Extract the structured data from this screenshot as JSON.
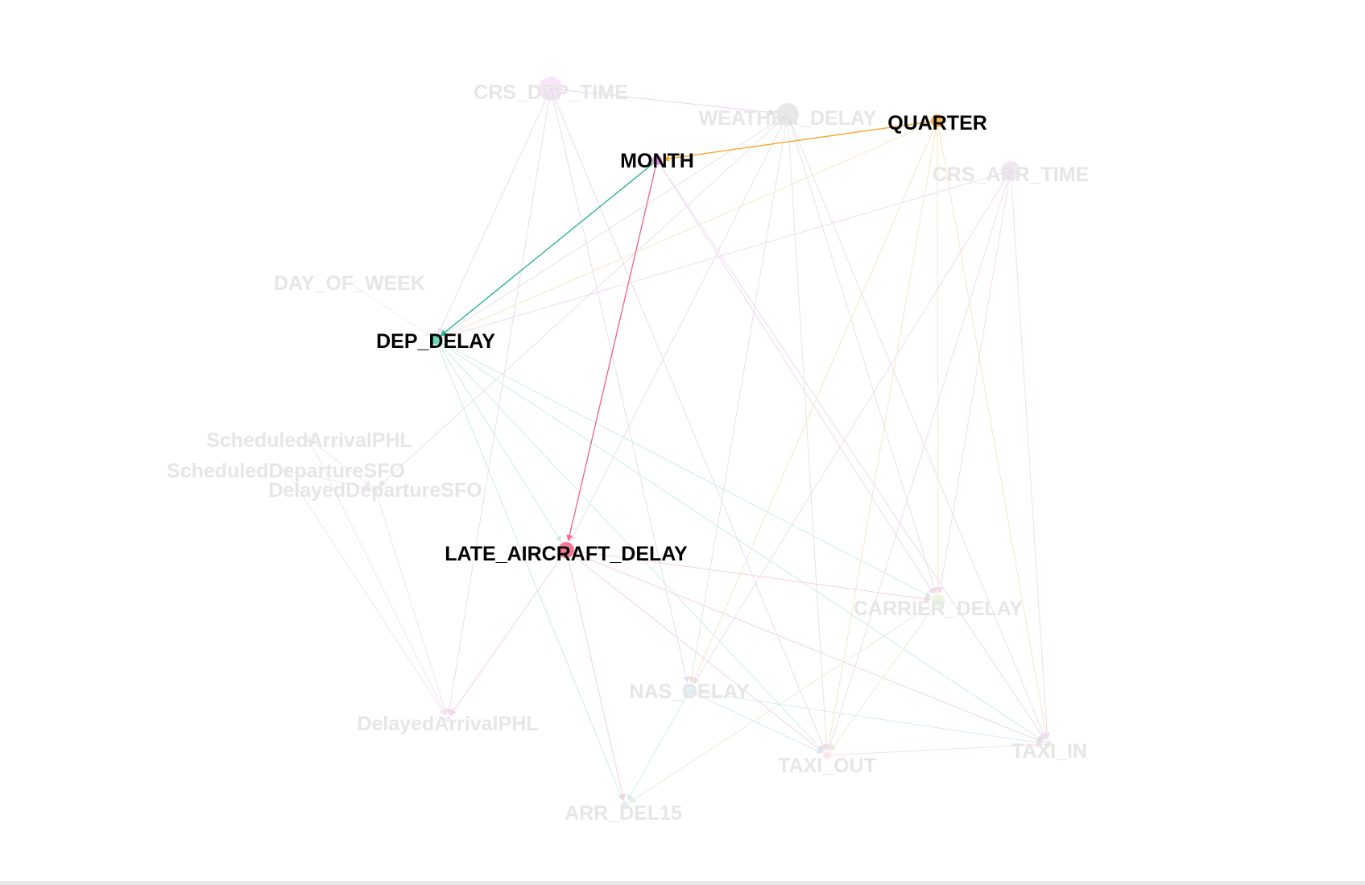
{
  "graph": {
    "highlight_color": "#000000",
    "dim_color": "#e6e6e6",
    "nodes": [
      {
        "id": "CRS_DEP_TIME",
        "label": "CRS_DEP_TIME",
        "color": "#f3c6f0",
        "highlighted": false
      },
      {
        "id": "WEATHER_DELAY",
        "label": "WEATHER_DELAY",
        "color": "#cccccc",
        "highlighted": false
      },
      {
        "id": "QUARTER",
        "label": "QUARTER",
        "color": "#f5b14c",
        "highlighted": true
      },
      {
        "id": "MONTH",
        "label": "MONTH",
        "color": "#d98ad8",
        "highlighted": true
      },
      {
        "id": "CRS_ARR_TIME",
        "label": "CRS_ARR_TIME",
        "color": "#e9c8ec",
        "highlighted": false
      },
      {
        "id": "DAY_OF_WEEK",
        "label": "DAY_OF_WEEK",
        "color": "#eeeeee",
        "highlighted": false
      },
      {
        "id": "DEP_DELAY",
        "label": "DEP_DELAY",
        "color": "#5fd1b5",
        "highlighted": true
      },
      {
        "id": "ScheduledArrivalPHL",
        "label": "ScheduledArrivalPHL",
        "color": "#eedcf0",
        "highlighted": false
      },
      {
        "id": "ScheduledDepartureSFO",
        "label": "ScheduledDepartureSFO",
        "color": "#eedcf0",
        "highlighted": false
      },
      {
        "id": "DelayedDepartureSFO",
        "label": "DelayedDepartureSFO",
        "color": "#eedcf0",
        "highlighted": false
      },
      {
        "id": "LATE_AIRCRAFT_DELAY",
        "label": "LATE_AIRCRAFT_DELAY",
        "color": "#f26d8c",
        "highlighted": true
      },
      {
        "id": "CARRIER_DELAY",
        "label": "CARRIER_DELAY",
        "color": "#d7e6bf",
        "highlighted": false
      },
      {
        "id": "NAS_DELAY",
        "label": "NAS_DELAY",
        "color": "#bfe3f2",
        "highlighted": false
      },
      {
        "id": "DelayedArrivalPHL",
        "label": "DelayedArrivalPHL",
        "color": "#eedcf0",
        "highlighted": false
      },
      {
        "id": "TAXI_OUT",
        "label": "TAXI_OUT",
        "color": "#f4cccc",
        "highlighted": false
      },
      {
        "id": "TAXI_IN",
        "label": "TAXI_IN",
        "color": "#d9d9d9",
        "highlighted": false
      },
      {
        "id": "ARR_DEL15",
        "label": "ARR_DEL15",
        "color": "#cfd8e6",
        "highlighted": false
      }
    ],
    "edges": [
      {
        "source": "QUARTER",
        "target": "MONTH",
        "color": "#f5a623",
        "highlighted": true
      },
      {
        "source": "MONTH",
        "target": "DEP_DELAY",
        "color": "#2bb594",
        "highlighted": true
      },
      {
        "source": "MONTH",
        "target": "LATE_AIRCRAFT_DELAY",
        "color": "#f06b8e",
        "highlighted": true
      },
      {
        "source": "CRS_DEP_TIME",
        "target": "WEATHER_DELAY",
        "color": "#e8d5f0",
        "highlighted": false
      },
      {
        "source": "CRS_DEP_TIME",
        "target": "DEP_DELAY",
        "color": "#eadcf2",
        "highlighted": false
      },
      {
        "source": "CRS_DEP_TIME",
        "target": "NAS_DELAY",
        "color": "#eadcf2",
        "highlighted": false
      },
      {
        "source": "CRS_DEP_TIME",
        "target": "DelayedArrivalPHL",
        "color": "#eadcf2",
        "highlighted": false
      },
      {
        "source": "CRS_DEP_TIME",
        "target": "TAXI_OUT",
        "color": "#eadcf2",
        "highlighted": false
      },
      {
        "source": "WEATHER_DELAY",
        "target": "DEP_DELAY",
        "color": "#e4e4e4",
        "highlighted": false
      },
      {
        "source": "WEATHER_DELAY",
        "target": "LATE_AIRCRAFT_DELAY",
        "color": "#e4e4e4",
        "highlighted": false
      },
      {
        "source": "WEATHER_DELAY",
        "target": "NAS_DELAY",
        "color": "#e4e4e4",
        "highlighted": false
      },
      {
        "source": "WEATHER_DELAY",
        "target": "TAXI_OUT",
        "color": "#e4e4e4",
        "highlighted": false
      },
      {
        "source": "WEATHER_DELAY",
        "target": "TAXI_IN",
        "color": "#e4e4e4",
        "highlighted": false
      },
      {
        "source": "WEATHER_DELAY",
        "target": "CARRIER_DELAY",
        "color": "#e4e4e4",
        "highlighted": false
      },
      {
        "source": "WEATHER_DELAY",
        "target": "DelayedDepartureSFO",
        "color": "#e4e4e4",
        "highlighted": false
      },
      {
        "source": "QUARTER",
        "target": "DEP_DELAY",
        "color": "#fbe5c4",
        "highlighted": false
      },
      {
        "source": "QUARTER",
        "target": "TAXI_OUT",
        "color": "#fbe5c4",
        "highlighted": false
      },
      {
        "source": "QUARTER",
        "target": "TAXI_IN",
        "color": "#fbe5c4",
        "highlighted": false
      },
      {
        "source": "QUARTER",
        "target": "CARRIER_DELAY",
        "color": "#fbe5c4",
        "highlighted": false
      },
      {
        "source": "QUARTER",
        "target": "NAS_DELAY",
        "color": "#fbe5c4",
        "highlighted": false
      },
      {
        "source": "MONTH",
        "target": "CARRIER_DELAY",
        "color": "#efd9f0",
        "highlighted": false
      },
      {
        "source": "MONTH",
        "target": "TAXI_IN",
        "color": "#efd9f0",
        "highlighted": false
      },
      {
        "source": "CRS_ARR_TIME",
        "target": "DEP_DELAY",
        "color": "#f0dcf2",
        "highlighted": false
      },
      {
        "source": "CRS_ARR_TIME",
        "target": "TAXI_OUT",
        "color": "#f0dcf2",
        "highlighted": false
      },
      {
        "source": "CRS_ARR_TIME",
        "target": "TAXI_IN",
        "color": "#f0dcf2",
        "highlighted": false
      },
      {
        "source": "CRS_ARR_TIME",
        "target": "CARRIER_DELAY",
        "color": "#f0dcf2",
        "highlighted": false
      },
      {
        "source": "CRS_ARR_TIME",
        "target": "NAS_DELAY",
        "color": "#f0dcf2",
        "highlighted": false
      },
      {
        "source": "DAY_OF_WEEK",
        "target": "DEP_DELAY",
        "color": "#f0f0f0",
        "highlighted": false
      },
      {
        "source": "DEP_DELAY",
        "target": "LATE_AIRCRAFT_DELAY",
        "color": "#cdeee5",
        "highlighted": false
      },
      {
        "source": "DEP_DELAY",
        "target": "CARRIER_DELAY",
        "color": "#cdeee5",
        "highlighted": false
      },
      {
        "source": "DEP_DELAY",
        "target": "TAXI_IN",
        "color": "#cdeee5",
        "highlighted": false
      },
      {
        "source": "DEP_DELAY",
        "target": "ARR_DEL15",
        "color": "#cdeee5",
        "highlighted": false
      },
      {
        "source": "DEP_DELAY",
        "target": "TAXI_OUT",
        "color": "#cdeee5",
        "highlighted": false
      },
      {
        "source": "LATE_AIRCRAFT_DELAY",
        "target": "CARRIER_DELAY",
        "color": "#f7d1dc",
        "highlighted": false
      },
      {
        "source": "LATE_AIRCRAFT_DELAY",
        "target": "TAXI_IN",
        "color": "#f7d1dc",
        "highlighted": false
      },
      {
        "source": "LATE_AIRCRAFT_DELAY",
        "target": "ARR_DEL15",
        "color": "#f7d1dc",
        "highlighted": false
      },
      {
        "source": "LATE_AIRCRAFT_DELAY",
        "target": "DelayedArrivalPHL",
        "color": "#f7d1dc",
        "highlighted": false
      },
      {
        "source": "LATE_AIRCRAFT_DELAY",
        "target": "TAXI_OUT",
        "color": "#f7d1dc",
        "highlighted": false
      },
      {
        "source": "NAS_DELAY",
        "target": "TAXI_IN",
        "color": "#d5ecf6",
        "highlighted": false
      },
      {
        "source": "NAS_DELAY",
        "target": "ARR_DEL15",
        "color": "#d5ecf6",
        "highlighted": false
      },
      {
        "source": "NAS_DELAY",
        "target": "TAXI_OUT",
        "color": "#d5ecf6",
        "highlighted": false
      },
      {
        "source": "CARRIER_DELAY",
        "target": "ARR_DEL15",
        "color": "#e6efd8",
        "highlighted": false
      },
      {
        "source": "CARRIER_DELAY",
        "target": "TAXI_OUT",
        "color": "#e6efd8",
        "highlighted": false
      },
      {
        "source": "TAXI_OUT",
        "target": "TAXI_IN",
        "color": "#f5e1e1",
        "highlighted": false
      },
      {
        "source": "ScheduledArrivalPHL",
        "target": "DelayedDepartureSFO",
        "color": "#f2e4f3",
        "highlighted": false
      },
      {
        "source": "ScheduledDepartureSFO",
        "target": "DelayedDepartureSFO",
        "color": "#f2e4f3",
        "highlighted": false
      },
      {
        "source": "ScheduledDepartureSFO",
        "target": "DelayedArrivalPHL",
        "color": "#f2e4f3",
        "highlighted": false
      },
      {
        "source": "DelayedDepartureSFO",
        "target": "DelayedArrivalPHL",
        "color": "#f2e4f3",
        "highlighted": false
      },
      {
        "source": "ScheduledArrivalPHL",
        "target": "DelayedArrivalPHL",
        "color": "#f2e4f3",
        "highlighted": false
      }
    ]
  }
}
